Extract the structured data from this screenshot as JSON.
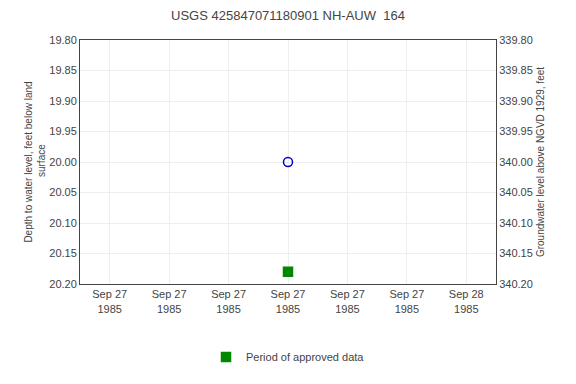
{
  "chart_data": {
    "type": "scatter",
    "title": "USGS 425847071180901 NH-AUW  164",
    "y_label": "Depth to water level, feet below land\n surface",
    "y2_label": "Groundwater level above NGVD 1929, feet",
    "categories": [
      "Sep 27\n1985",
      "Sep 27\n1985",
      "Sep 27\n1985",
      "Sep 27\n1985",
      "Sep 27\n1985",
      "Sep 27\n1985",
      "Sep 28\n1985"
    ],
    "ylim": [
      20.2,
      19.8
    ],
    "yticks": [
      {
        "value": 19.8,
        "label": "19.80"
      },
      19.85,
      {
        "value": 19.9,
        "label": "19.90"
      },
      19.95,
      {
        "value": 20.0,
        "label": "20.00"
      },
      20.05,
      {
        "value": 20.1,
        "label": "20.10"
      },
      20.15,
      {
        "value": 20.2,
        "label": "20.20"
      }
    ],
    "y2lim": [
      340.2,
      339.8
    ],
    "y2ticks": [
      {
        "value": 340.2,
        "label": "340.20"
      },
      340.15,
      {
        "value": 340.1,
        "label": "340.10"
      },
      340.05,
      {
        "value": 340.0,
        "label": "340.00"
      },
      339.95,
      {
        "value": 339.9,
        "label": "339.90"
      },
      339.85,
      {
        "value": 339.8,
        "label": "339.80"
      }
    ],
    "series": [
      {
        "values": [
          null,
          null,
          null,
          20.0,
          null,
          null,
          null
        ],
        "color": "#0000cc",
        "marker": "circle-open"
      },
      {
        "name": "Period of approved data",
        "values": [
          null,
          null,
          null,
          20.18,
          null,
          null,
          null
        ],
        "color": "#008800",
        "marker": "square"
      }
    ],
    "grid": true,
    "legend": "bottom"
  }
}
